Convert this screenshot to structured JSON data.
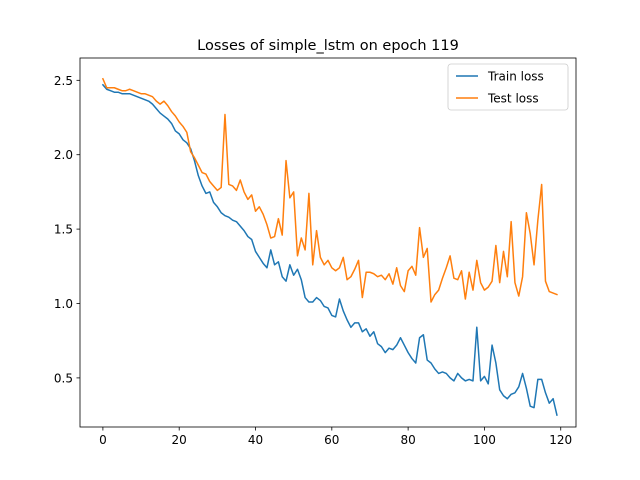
{
  "chart_data": {
    "type": "line",
    "title": "Losses of simple_lstm on epoch 119",
    "xlabel": "",
    "ylabel": "",
    "xlim": [
      -6,
      124
    ],
    "ylim": [
      0.17,
      2.65
    ],
    "xticks": [
      0,
      20,
      40,
      60,
      80,
      100,
      120
    ],
    "yticks": [
      0.5,
      1.0,
      1.5,
      2.0,
      2.5
    ],
    "ytick_labels": [
      "0.5",
      "1.0",
      "1.5",
      "2.0",
      "2.5"
    ],
    "grid": false,
    "legend_position": "top-right",
    "series": [
      {
        "name": "Train loss",
        "color": "#1f77b4",
        "values": [
          2.47,
          2.44,
          2.43,
          2.42,
          2.42,
          2.41,
          2.41,
          2.41,
          2.4,
          2.39,
          2.38,
          2.37,
          2.36,
          2.34,
          2.31,
          2.28,
          2.26,
          2.24,
          2.21,
          2.16,
          2.14,
          2.1,
          2.08,
          2.04,
          1.96,
          1.86,
          1.79,
          1.74,
          1.75,
          1.68,
          1.65,
          1.61,
          1.59,
          1.58,
          1.56,
          1.55,
          1.52,
          1.49,
          1.45,
          1.43,
          1.35,
          1.31,
          1.27,
          1.24,
          1.36,
          1.26,
          1.28,
          1.18,
          1.15,
          1.26,
          1.19,
          1.23,
          1.16,
          1.04,
          1.01,
          1.01,
          1.04,
          1.02,
          0.98,
          0.97,
          0.92,
          0.91,
          1.03,
          0.95,
          0.89,
          0.84,
          0.87,
          0.87,
          0.81,
          0.83,
          0.78,
          0.81,
          0.73,
          0.71,
          0.67,
          0.7,
          0.69,
          0.72,
          0.77,
          0.72,
          0.67,
          0.63,
          0.6,
          0.77,
          0.79,
          0.62,
          0.6,
          0.56,
          0.53,
          0.54,
          0.53,
          0.5,
          0.48,
          0.53,
          0.5,
          0.48,
          0.49,
          0.48,
          0.84,
          0.48,
          0.51,
          0.46,
          0.72,
          0.6,
          0.42,
          0.38,
          0.36,
          0.39,
          0.4,
          0.44,
          0.53,
          0.43,
          0.31,
          0.3,
          0.49,
          0.49,
          0.4,
          0.33,
          0.36,
          0.25
        ]
      },
      {
        "name": "Test loss",
        "color": "#ff7f0e",
        "values": [
          2.51,
          2.45,
          2.45,
          2.45,
          2.44,
          2.43,
          2.43,
          2.44,
          2.43,
          2.42,
          2.41,
          2.41,
          2.4,
          2.39,
          2.36,
          2.34,
          2.36,
          2.33,
          2.29,
          2.26,
          2.22,
          2.19,
          2.15,
          2.02,
          1.98,
          1.93,
          1.88,
          1.87,
          1.82,
          1.79,
          1.76,
          1.78,
          2.27,
          1.8,
          1.79,
          1.76,
          1.83,
          1.75,
          1.7,
          1.73,
          1.62,
          1.65,
          1.6,
          1.53,
          1.44,
          1.45,
          1.57,
          1.46,
          1.96,
          1.71,
          1.75,
          1.32,
          1.44,
          1.36,
          1.74,
          1.26,
          1.49,
          1.31,
          1.26,
          1.29,
          1.24,
          1.22,
          1.24,
          1.31,
          1.16,
          1.18,
          1.23,
          1.29,
          1.04,
          1.21,
          1.21,
          1.2,
          1.18,
          1.19,
          1.16,
          1.2,
          1.13,
          1.24,
          1.12,
          1.08,
          1.22,
          1.25,
          1.19,
          1.51,
          1.31,
          1.37,
          1.01,
          1.06,
          1.09,
          1.17,
          1.24,
          1.32,
          1.17,
          1.16,
          1.22,
          1.03,
          1.21,
          1.09,
          1.29,
          1.14,
          1.09,
          1.11,
          1.15,
          1.39,
          1.14,
          1.35,
          1.18,
          1.55,
          1.14,
          1.05,
          1.18,
          1.61,
          1.47,
          1.26,
          1.56,
          1.8,
          1.15,
          1.08,
          1.07,
          1.06
        ]
      }
    ]
  }
}
